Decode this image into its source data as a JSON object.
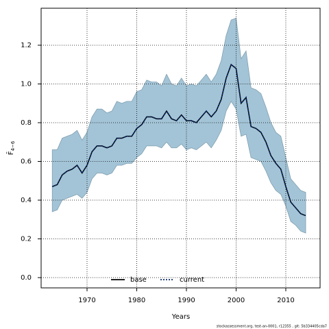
{
  "chart_data": {
    "type": "line",
    "xlabel": "Years",
    "ylabel": "F̄",
    "ylabel_subscript": "4−6",
    "caption": "stockassessment.org, test-an-0001, r12355 , git: 5b334405cda7",
    "x": [
      1963,
      1964,
      1965,
      1966,
      1967,
      1968,
      1969,
      1970,
      1971,
      1972,
      1973,
      1974,
      1975,
      1976,
      1977,
      1978,
      1979,
      1980,
      1981,
      1982,
      1983,
      1984,
      1985,
      1986,
      1987,
      1988,
      1989,
      1990,
      1991,
      1992,
      1993,
      1994,
      1995,
      1996,
      1997,
      1998,
      1999,
      2000,
      2001,
      2002,
      2003,
      2004,
      2005,
      2006,
      2007,
      2008,
      2009,
      2010,
      2011,
      2012,
      2013,
      2014
    ],
    "band": {
      "color": "#a3c4d6",
      "edge": "#7f9fb0",
      "upper": [
        0.66,
        0.66,
        0.72,
        0.73,
        0.74,
        0.76,
        0.71,
        0.75,
        0.83,
        0.87,
        0.87,
        0.85,
        0.86,
        0.91,
        0.9,
        0.91,
        0.91,
        0.96,
        0.97,
        1.02,
        1.01,
        1.01,
        0.99,
        1.05,
        1.0,
        0.99,
        1.03,
        0.99,
        1.0,
        0.99,
        1.02,
        1.05,
        1.01,
        1.05,
        1.12,
        1.25,
        1.33,
        1.34,
        1.13,
        1.17,
        0.98,
        0.97,
        0.95,
        0.88,
        0.8,
        0.75,
        0.73,
        0.62,
        0.51,
        0.48,
        0.45,
        0.44
      ],
      "lower": [
        0.34,
        0.35,
        0.4,
        0.41,
        0.42,
        0.43,
        0.41,
        0.44,
        0.51,
        0.54,
        0.54,
        0.53,
        0.54,
        0.58,
        0.58,
        0.59,
        0.59,
        0.62,
        0.64,
        0.68,
        0.68,
        0.68,
        0.67,
        0.7,
        0.67,
        0.67,
        0.69,
        0.66,
        0.67,
        0.66,
        0.68,
        0.7,
        0.67,
        0.71,
        0.76,
        0.86,
        0.91,
        0.87,
        0.73,
        0.74,
        0.62,
        0.61,
        0.6,
        0.55,
        0.49,
        0.45,
        0.43,
        0.37,
        0.29,
        0.27,
        0.24,
        0.23
      ]
    },
    "series": [
      {
        "name": "base",
        "color": "#000000",
        "dash": false,
        "values": [
          0.47,
          0.48,
          0.53,
          0.55,
          0.56,
          0.58,
          0.54,
          0.58,
          0.65,
          0.68,
          0.68,
          0.67,
          0.68,
          0.72,
          0.72,
          0.73,
          0.73,
          0.77,
          0.79,
          0.83,
          0.83,
          0.82,
          0.82,
          0.86,
          0.82,
          0.81,
          0.84,
          0.81,
          0.81,
          0.8,
          0.83,
          0.86,
          0.83,
          0.86,
          0.92,
          1.03,
          1.1,
          1.08,
          0.9,
          0.93,
          0.78,
          0.77,
          0.75,
          0.7,
          0.63,
          0.59,
          0.56,
          0.47,
          0.39,
          0.36,
          0.33,
          0.32
        ]
      },
      {
        "name": "current",
        "color": "#0a2a6a",
        "dash": true,
        "values": [
          0.47,
          0.48,
          0.53,
          0.55,
          0.56,
          0.58,
          0.54,
          0.58,
          0.65,
          0.68,
          0.68,
          0.67,
          0.68,
          0.72,
          0.72,
          0.73,
          0.73,
          0.77,
          0.79,
          0.83,
          0.83,
          0.82,
          0.82,
          0.86,
          0.82,
          0.81,
          0.84,
          0.81,
          0.81,
          0.8,
          0.83,
          0.86,
          0.83,
          0.86,
          0.92,
          1.03,
          1.1,
          1.08,
          0.9,
          0.93,
          0.78,
          0.77,
          0.75,
          0.7,
          0.63,
          0.59,
          0.56,
          0.47,
          0.39,
          0.36,
          0.33,
          0.32
        ]
      }
    ],
    "xlim": [
      1960.76,
      2016.9
    ],
    "ylim": [
      -0.053,
      1.391
    ],
    "xticks": [
      1970,
      1980,
      1990,
      2000,
      2010
    ],
    "yticks": [
      {
        "value": 0,
        "label": "0.0"
      },
      0.2,
      0.4,
      0.6,
      0.8,
      {
        "value": 1,
        "label": "1.0"
      },
      1.2
    ],
    "grid": true,
    "legend": "bottom"
  }
}
